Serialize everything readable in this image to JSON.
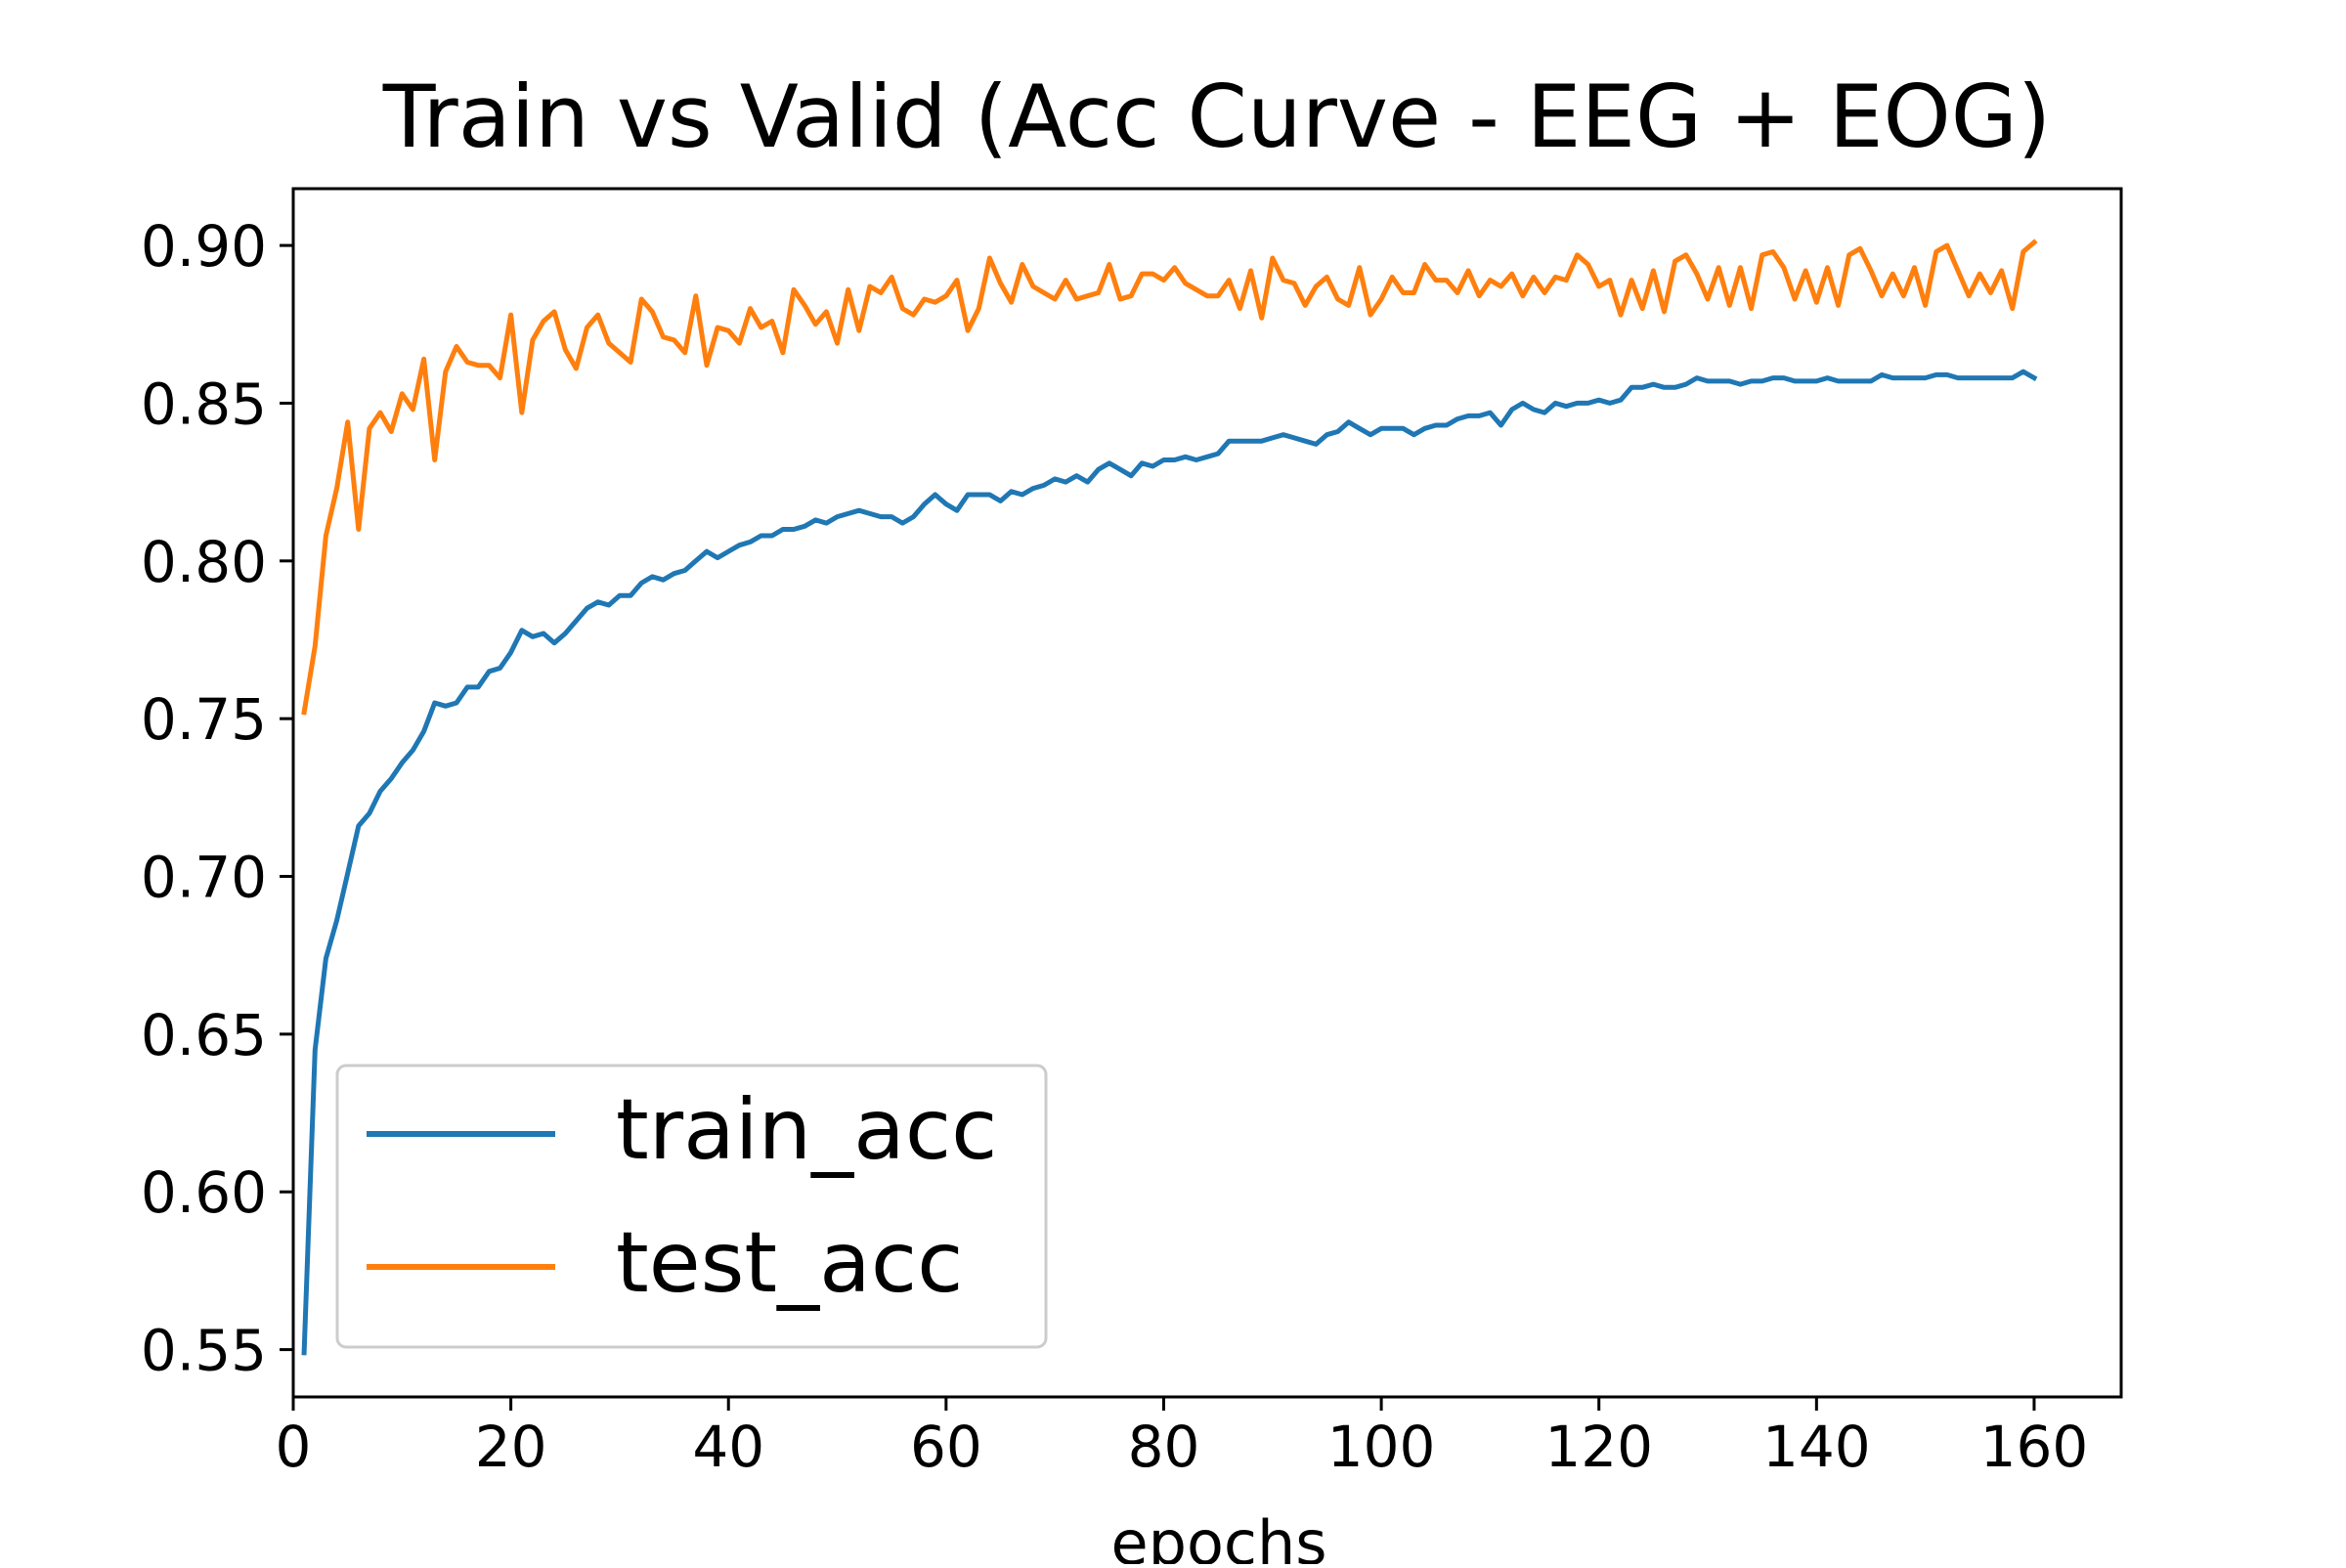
{
  "chart_data": {
    "type": "line",
    "title": "Train vs Valid  (Acc Curve - EEG + EOG)",
    "xlabel": "epochs",
    "ylabel": "",
    "xlim": [
      0,
      168
    ],
    "ylim": [
      0.535,
      0.918
    ],
    "xticks": [
      0,
      20,
      40,
      60,
      80,
      100,
      120,
      140,
      160
    ],
    "xtick_labels": [
      "0",
      "20",
      "40",
      "60",
      "80",
      "100",
      "120",
      "140",
      "160"
    ],
    "yticks": [
      0.55,
      0.6,
      0.65,
      0.7,
      0.75,
      0.8,
      0.85,
      0.9
    ],
    "ytick_labels": [
      "0.55",
      "0.60",
      "0.65",
      "0.70",
      "0.75",
      "0.80",
      "0.85",
      "0.90"
    ],
    "grid": false,
    "legend_position": "lower-left",
    "x": [
      1,
      2,
      3,
      4,
      5,
      6,
      7,
      8,
      9,
      10,
      11,
      12,
      13,
      14,
      15,
      16,
      17,
      18,
      19,
      20,
      21,
      22,
      23,
      24,
      25,
      26,
      27,
      28,
      29,
      30,
      31,
      32,
      33,
      34,
      35,
      36,
      37,
      38,
      39,
      40,
      41,
      42,
      43,
      44,
      45,
      46,
      47,
      48,
      49,
      50,
      51,
      52,
      53,
      54,
      55,
      56,
      57,
      58,
      59,
      60,
      61,
      62,
      63,
      64,
      65,
      66,
      67,
      68,
      69,
      70,
      71,
      72,
      73,
      74,
      75,
      76,
      77,
      78,
      79,
      80,
      81,
      82,
      83,
      84,
      85,
      86,
      87,
      88,
      89,
      90,
      91,
      92,
      93,
      94,
      95,
      96,
      97,
      98,
      99,
      100,
      101,
      102,
      103,
      104,
      105,
      106,
      107,
      108,
      109,
      110,
      111,
      112,
      113,
      114,
      115,
      116,
      117,
      118,
      119,
      120,
      121,
      122,
      123,
      124,
      125,
      126,
      127,
      128,
      129,
      130,
      131,
      132,
      133,
      134,
      135,
      136,
      137,
      138,
      139,
      140,
      141,
      142,
      143,
      144,
      145,
      146,
      147,
      148,
      149,
      150,
      151,
      152,
      153,
      154,
      155,
      156,
      157,
      158,
      159,
      160
    ],
    "series": [
      {
        "name": "train_acc",
        "color": "#1f77b4",
        "values": [
          0.549,
          0.645,
          0.674,
          0.686,
          0.701,
          0.716,
          0.72,
          0.727,
          0.731,
          0.736,
          0.74,
          0.746,
          0.755,
          0.754,
          0.755,
          0.76,
          0.76,
          0.765,
          0.766,
          0.771,
          0.778,
          0.776,
          0.777,
          0.774,
          0.777,
          0.781,
          0.785,
          0.787,
          0.786,
          0.789,
          0.789,
          0.793,
          0.795,
          0.794,
          0.796,
          0.797,
          0.8,
          0.803,
          0.801,
          0.803,
          0.805,
          0.806,
          0.808,
          0.808,
          0.81,
          0.81,
          0.811,
          0.813,
          0.812,
          0.814,
          0.815,
          0.816,
          0.815,
          0.814,
          0.814,
          0.812,
          0.814,
          0.818,
          0.821,
          0.818,
          0.816,
          0.821,
          0.821,
          0.821,
          0.819,
          0.822,
          0.821,
          0.823,
          0.824,
          0.826,
          0.825,
          0.827,
          0.825,
          0.829,
          0.831,
          0.829,
          0.827,
          0.831,
          0.83,
          0.832,
          0.832,
          0.833,
          0.832,
          0.833,
          0.834,
          0.838,
          0.838,
          0.838,
          0.838,
          0.839,
          0.84,
          0.839,
          0.838,
          0.837,
          0.84,
          0.841,
          0.844,
          0.842,
          0.84,
          0.842,
          0.842,
          0.842,
          0.84,
          0.842,
          0.843,
          0.843,
          0.845,
          0.846,
          0.846,
          0.847,
          0.843,
          0.848,
          0.85,
          0.848,
          0.847,
          0.85,
          0.849,
          0.85,
          0.85,
          0.851,
          0.85,
          0.851,
          0.855,
          0.855,
          0.856,
          0.855,
          0.855,
          0.856,
          0.858,
          0.857,
          0.857,
          0.857,
          0.856,
          0.857,
          0.857,
          0.858,
          0.858,
          0.857,
          0.857,
          0.857,
          0.858,
          0.857,
          0.857,
          0.857,
          0.857,
          0.859,
          0.858,
          0.858,
          0.858,
          0.858,
          0.859,
          0.859,
          0.858,
          0.858,
          0.858,
          0.858,
          0.858,
          0.858,
          0.86,
          0.858
        ]
      },
      {
        "name": "test_acc",
        "color": "#ff7f0e",
        "values": [
          0.752,
          0.773,
          0.808,
          0.823,
          0.844,
          0.81,
          0.842,
          0.847,
          0.841,
          0.853,
          0.848,
          0.864,
          0.832,
          0.86,
          0.868,
          0.863,
          0.862,
          0.862,
          0.858,
          0.878,
          0.847,
          0.87,
          0.876,
          0.879,
          0.867,
          0.861,
          0.874,
          0.878,
          0.869,
          0.866,
          0.863,
          0.883,
          0.879,
          0.871,
          0.87,
          0.866,
          0.884,
          0.862,
          0.874,
          0.873,
          0.869,
          0.88,
          0.874,
          0.876,
          0.866,
          0.886,
          0.881,
          0.875,
          0.879,
          0.869,
          0.886,
          0.873,
          0.887,
          0.885,
          0.89,
          0.88,
          0.878,
          0.883,
          0.882,
          0.884,
          0.889,
          0.873,
          0.88,
          0.896,
          0.888,
          0.882,
          0.894,
          0.887,
          0.885,
          0.883,
          0.889,
          0.883,
          0.884,
          0.885,
          0.894,
          0.883,
          0.884,
          0.891,
          0.891,
          0.889,
          0.893,
          0.888,
          0.886,
          0.884,
          0.884,
          0.889,
          0.88,
          0.892,
          0.877,
          0.896,
          0.889,
          0.888,
          0.881,
          0.887,
          0.89,
          0.883,
          0.881,
          0.893,
          0.878,
          0.883,
          0.89,
          0.885,
          0.885,
          0.894,
          0.889,
          0.889,
          0.885,
          0.892,
          0.884,
          0.889,
          0.887,
          0.891,
          0.884,
          0.89,
          0.885,
          0.89,
          0.889,
          0.897,
          0.894,
          0.887,
          0.889,
          0.878,
          0.889,
          0.88,
          0.892,
          0.879,
          0.895,
          0.897,
          0.891,
          0.883,
          0.893,
          0.881,
          0.893,
          0.88,
          0.897,
          0.898,
          0.893,
          0.883,
          0.892,
          0.882,
          0.893,
          0.881,
          0.897,
          0.899,
          0.892,
          0.884,
          0.891,
          0.884,
          0.893,
          0.881,
          0.898,
          0.9,
          0.892,
          0.884,
          0.891,
          0.885,
          0.892,
          0.88,
          0.898,
          0.901
        ]
      }
    ]
  }
}
